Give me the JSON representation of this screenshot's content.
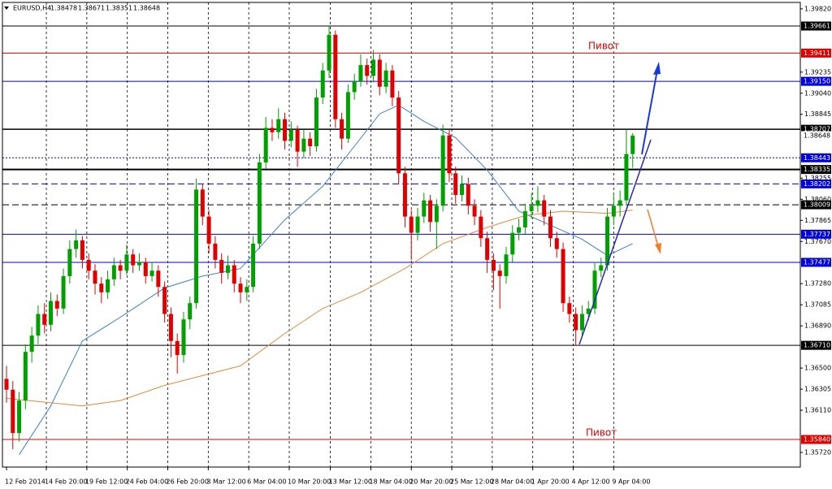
{
  "chart_data": {
    "type": "candlestick",
    "symbol": "EURUSD,H4",
    "annotations": [
      "Пивот",
      "Пивот"
    ],
    "bull_color": "#00a000",
    "bear_color": "#e00000",
    "grid": true,
    "ylim": [
      1.35585,
      1.39879
    ],
    "yticks": [
      {
        "value": 1.3982,
        "label": "1.39820"
      },
      {
        "value": 1.39235,
        "label": "1.39235"
      },
      {
        "value": 1.3904,
        "label": "1.39040"
      },
      {
        "value": 1.38845,
        "label": "1.38845"
      },
      {
        "value": 1.38255,
        "label": "1.38255"
      },
      {
        "value": 1.3806,
        "label": "1.38060"
      },
      {
        "value": 1.37865,
        "label": "1.37865"
      },
      {
        "value": 1.3767,
        "label": "1.37670"
      },
      {
        "value": 1.3728,
        "label": "1.37280"
      },
      {
        "value": 1.37085,
        "label": "1.37085"
      },
      {
        "value": 1.3689,
        "label": "1.36890"
      },
      {
        "value": 1.365,
        "label": "1.36500"
      },
      {
        "value": 1.36305,
        "label": "1.36305"
      },
      {
        "value": 1.3611,
        "label": "1.36110"
      },
      {
        "value": 1.3572,
        "label": "1.35720"
      }
    ],
    "xlim": [
      0,
      125.5
    ],
    "xticks": [
      {
        "value": 0,
        "label": "12 Feb 2014"
      },
      {
        "value": 6.3,
        "label": "14 Feb 20:00"
      },
      {
        "value": 12.7,
        "label": "19 Feb 12:00"
      },
      {
        "value": 19.1,
        "label": "24 Feb 04:00"
      },
      {
        "value": 25.5,
        "label": "26 Feb 20:00"
      },
      {
        "value": 31.9,
        "label": "3 Mar 12:00"
      },
      {
        "value": 38.3,
        "label": "6 Mar 04:00"
      },
      {
        "value": 44.7,
        "label": "10 Mar 20:00"
      },
      {
        "value": 51.2,
        "label": "13 Mar 12:00"
      },
      {
        "value": 57.6,
        "label": "18 Mar 04:00"
      },
      {
        "value": 64,
        "label": "20 Mar 20:00"
      },
      {
        "value": 70.4,
        "label": "25 Mar 12:00"
      },
      {
        "value": 76.8,
        "label": "28 Mar 04:00"
      },
      {
        "value": 83.2,
        "label": "1 Apr 20:00"
      },
      {
        "value": 89.6,
        "label": "4 Apr 12:00"
      },
      {
        "value": 96,
        "label": "9 Apr 04:00"
      }
    ],
    "levels": [
      {
        "value": 1.39661,
        "label": "1.39661",
        "color": "#000000",
        "style": "solid",
        "width": 1
      },
      {
        "value": 1.39411,
        "label": "1.39411",
        "color": "#e00000",
        "style": "solid",
        "width": 1
      },
      {
        "value": 1.3915,
        "label": "1.39150",
        "color": "#0000e0",
        "style": "solid",
        "width": 1
      },
      {
        "value": 1.38707,
        "label": "1.38707",
        "color": "#000000",
        "style": "solid",
        "width": 1.5
      },
      {
        "value": 1.38443,
        "label": "1.38443",
        "color": "#0000e0",
        "style": "dotted",
        "width": 1
      },
      {
        "value": 1.38335,
        "label": "1.38335",
        "color": "#000000",
        "style": "solid",
        "width": 2
      },
      {
        "value": 1.38202,
        "label": "1.38202",
        "color": "#0000e0",
        "style": "dashed",
        "width": 1
      },
      {
        "value": 1.38009,
        "label": "1.38009",
        "color": "#000000",
        "style": "dashed",
        "width": 1
      },
      {
        "value": 1.37737,
        "label": "1.37737",
        "color": "#0000e0",
        "style": "solid",
        "width": 1
      },
      {
        "value": 1.37477,
        "label": "1.37477",
        "color": "#0000e0",
        "style": "solid",
        "width": 1
      },
      {
        "value": 1.3671,
        "label": "1.36710",
        "color": "#000000",
        "style": "solid",
        "width": 1
      },
      {
        "value": 1.3584,
        "label": "1.35840",
        "color": "#e00000",
        "style": "solid",
        "width": 1
      }
    ],
    "moving_averages": [
      {
        "color": "#3d7fc4",
        "x": [
          2,
          7,
          12,
          18,
          25,
          31,
          37,
          44,
          50,
          55,
          59,
          62,
          66,
          71,
          76,
          81,
          86,
          91,
          95,
          99
        ],
        "values": [
          1.357,
          1.3615,
          1.3675,
          1.3697,
          1.3724,
          1.3735,
          1.3742,
          1.3787,
          1.3818,
          1.3855,
          1.3885,
          1.3893,
          1.3878,
          1.3863,
          1.3833,
          1.3795,
          1.3782,
          1.3769,
          1.3754,
          1.3765
        ]
      },
      {
        "color": "#e08a40",
        "x": [
          0,
          12,
          18,
          25,
          31,
          37,
          44,
          50,
          56,
          63,
          69,
          76,
          82,
          88,
          95,
          99
        ],
        "values": [
          1.3622,
          1.3615,
          1.362,
          1.3634,
          1.3643,
          1.3652,
          1.3682,
          1.3705,
          1.372,
          1.3742,
          1.3765,
          1.378,
          1.3791,
          1.3795,
          1.3793,
          1.3796
        ]
      }
    ],
    "candles": [
      [
        1.364,
        1.3652,
        1.3618,
        1.363
      ],
      [
        1.363,
        1.3638,
        1.3575,
        1.359
      ],
      [
        1.359,
        1.3628,
        1.3582,
        1.362
      ],
      [
        1.362,
        1.3672,
        1.3612,
        1.3665
      ],
      [
        1.3665,
        1.3688,
        1.3655,
        1.368
      ],
      [
        1.368,
        1.3708,
        1.3672,
        1.37
      ],
      [
        1.37,
        1.371,
        1.3682,
        1.369
      ],
      [
        1.369,
        1.372,
        1.3684,
        1.3712
      ],
      [
        1.3712,
        1.3718,
        1.3698,
        1.3705
      ],
      [
        1.3705,
        1.3742,
        1.37,
        1.3735
      ],
      [
        1.3735,
        1.3768,
        1.3728,
        1.376
      ],
      [
        1.376,
        1.3778,
        1.3752,
        1.3768
      ],
      [
        1.3768,
        1.3772,
        1.3742,
        1.375
      ],
      [
        1.375,
        1.3756,
        1.3732,
        1.374
      ],
      [
        1.374,
        1.3746,
        1.3718,
        1.3728
      ],
      [
        1.3728,
        1.3734,
        1.371,
        1.372
      ],
      [
        1.372,
        1.374,
        1.3714,
        1.3732
      ],
      [
        1.3732,
        1.3752,
        1.3726,
        1.3745
      ],
      [
        1.3745,
        1.375,
        1.3732,
        1.374
      ],
      [
        1.374,
        1.3764,
        1.3736,
        1.3755
      ],
      [
        1.3755,
        1.376,
        1.3738,
        1.3745
      ],
      [
        1.3745,
        1.3756,
        1.374,
        1.3748
      ],
      [
        1.3748,
        1.3752,
        1.3728,
        1.3735
      ],
      [
        1.3735,
        1.3748,
        1.373,
        1.374
      ],
      [
        1.374,
        1.3745,
        1.3716,
        1.3725
      ],
      [
        1.3725,
        1.373,
        1.3692,
        1.37
      ],
      [
        1.37,
        1.3706,
        1.366,
        1.3675
      ],
      [
        1.3675,
        1.3682,
        1.3645,
        1.3662
      ],
      [
        1.3662,
        1.3702,
        1.3655,
        1.3695
      ],
      [
        1.3695,
        1.3716,
        1.3686,
        1.371
      ],
      [
        1.371,
        1.3825,
        1.3705,
        1.3815
      ],
      [
        1.3815,
        1.382,
        1.3782,
        1.379
      ],
      [
        1.379,
        1.3796,
        1.3756,
        1.3765
      ],
      [
        1.3765,
        1.3772,
        1.3742,
        1.375
      ],
      [
        1.375,
        1.3756,
        1.3728,
        1.3738
      ],
      [
        1.3738,
        1.3754,
        1.3732,
        1.3745
      ],
      [
        1.3745,
        1.375,
        1.372,
        1.3728
      ],
      [
        1.3728,
        1.3734,
        1.371,
        1.372
      ],
      [
        1.372,
        1.3732,
        1.3712,
        1.3725
      ],
      [
        1.3725,
        1.3772,
        1.372,
        1.3765
      ],
      [
        1.3765,
        1.3848,
        1.376,
        1.384
      ],
      [
        1.384,
        1.3882,
        1.3834,
        1.3872
      ],
      [
        1.3872,
        1.388,
        1.386,
        1.3868
      ],
      [
        1.3868,
        1.389,
        1.3862,
        1.388
      ],
      [
        1.388,
        1.3886,
        1.3852,
        1.386
      ],
      [
        1.386,
        1.3878,
        1.3854,
        1.387
      ],
      [
        1.387,
        1.3874,
        1.3836,
        1.385
      ],
      [
        1.385,
        1.387,
        1.3844,
        1.3862
      ],
      [
        1.3862,
        1.3868,
        1.3846,
        1.3855
      ],
      [
        1.3855,
        1.3908,
        1.385,
        1.39
      ],
      [
        1.39,
        1.3932,
        1.3894,
        1.3925
      ],
      [
        1.3925,
        1.3966,
        1.3918,
        1.3958
      ],
      [
        1.3958,
        1.3962,
        1.3872,
        1.388
      ],
      [
        1.388,
        1.3886,
        1.3852,
        1.3862
      ],
      [
        1.3862,
        1.3912,
        1.3858,
        1.3905
      ],
      [
        1.3905,
        1.3922,
        1.3898,
        1.3915
      ],
      [
        1.3915,
        1.394,
        1.391,
        1.393
      ],
      [
        1.393,
        1.3936,
        1.3912,
        1.392
      ],
      [
        1.392,
        1.3944,
        1.3914,
        1.3935
      ],
      [
        1.3935,
        1.394,
        1.3902,
        1.391
      ],
      [
        1.391,
        1.3932,
        1.3904,
        1.3925
      ],
      [
        1.3925,
        1.393,
        1.3892,
        1.39
      ],
      [
        1.39,
        1.3906,
        1.382,
        1.383
      ],
      [
        1.383,
        1.3836,
        1.378,
        1.379
      ],
      [
        1.379,
        1.3796,
        1.375,
        1.3775
      ],
      [
        1.3775,
        1.3798,
        1.3768,
        1.379
      ],
      [
        1.379,
        1.3812,
        1.3784,
        1.3805
      ],
      [
        1.3805,
        1.381,
        1.3776,
        1.3785
      ],
      [
        1.3785,
        1.3806,
        1.376,
        1.38
      ],
      [
        1.38,
        1.3875,
        1.3795,
        1.3865
      ],
      [
        1.3865,
        1.387,
        1.3822,
        1.383
      ],
      [
        1.383,
        1.3836,
        1.3802,
        1.381
      ],
      [
        1.381,
        1.3828,
        1.3804,
        1.382
      ],
      [
        1.382,
        1.3826,
        1.3792,
        1.38
      ],
      [
        1.38,
        1.3806,
        1.3782,
        1.379
      ],
      [
        1.379,
        1.3796,
        1.3762,
        1.377
      ],
      [
        1.377,
        1.3776,
        1.3738,
        1.375
      ],
      [
        1.375,
        1.3756,
        1.3722,
        1.374
      ],
      [
        1.374,
        1.3746,
        1.3705,
        1.3735
      ],
      [
        1.3735,
        1.3762,
        1.3728,
        1.3755
      ],
      [
        1.3755,
        1.3782,
        1.3748,
        1.3775
      ],
      [
        1.3775,
        1.3788,
        1.3768,
        1.378
      ],
      [
        1.378,
        1.3802,
        1.3774,
        1.3795
      ],
      [
        1.3795,
        1.3812,
        1.3788,
        1.38
      ],
      [
        1.38,
        1.3818,
        1.3794,
        1.3805
      ],
      [
        1.3805,
        1.381,
        1.3782,
        1.379
      ],
      [
        1.379,
        1.3796,
        1.3762,
        1.377
      ],
      [
        1.377,
        1.3776,
        1.3752,
        1.376
      ],
      [
        1.376,
        1.3766,
        1.3702,
        1.371
      ],
      [
        1.371,
        1.3716,
        1.3692,
        1.37
      ],
      [
        1.37,
        1.3706,
        1.3671,
        1.3685
      ],
      [
        1.3685,
        1.3708,
        1.368,
        1.37
      ],
      [
        1.37,
        1.3712,
        1.3694,
        1.3705
      ],
      [
        1.3705,
        1.3748,
        1.37,
        1.374
      ],
      [
        1.374,
        1.3752,
        1.3734,
        1.3745
      ],
      [
        1.3745,
        1.3798,
        1.374,
        1.379
      ],
      [
        1.379,
        1.3812,
        1.3782,
        1.38
      ],
      [
        1.38,
        1.3814,
        1.379,
        1.3805
      ],
      [
        1.3805,
        1.38707,
        1.38,
        1.38478
      ],
      [
        1.38478,
        1.38671,
        1.38351,
        1.38648
      ]
    ]
  }
}
